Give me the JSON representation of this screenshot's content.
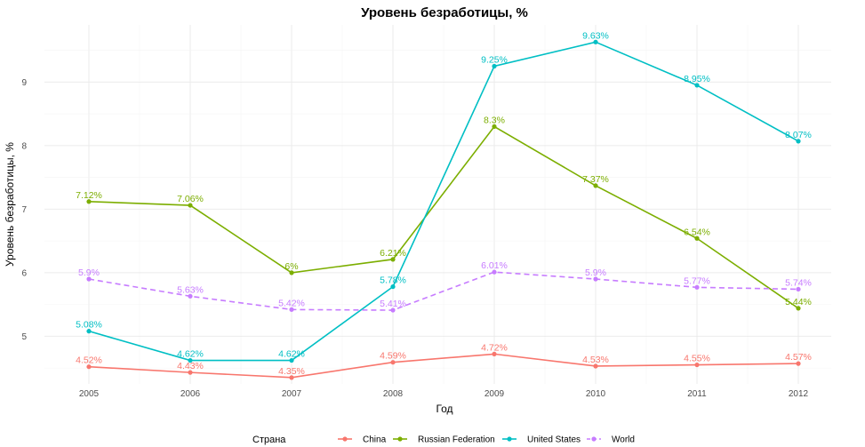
{
  "chart_data": {
    "type": "line",
    "title": "Уровень безработицы, %",
    "xlabel": "Год",
    "ylabel": "Уровень безработицы, %",
    "x": [
      2005,
      2006,
      2007,
      2008,
      2009,
      2010,
      2011,
      2012
    ],
    "ylim": [
      4.25,
      9.9
    ],
    "yticks": [
      5,
      6,
      7,
      8,
      9
    ],
    "grid": true,
    "legend": {
      "title": "Страна",
      "position": "bottom"
    },
    "series": [
      {
        "name": "China",
        "color": "#F8766D",
        "dashed": false,
        "values": [
          4.52,
          4.43,
          4.35,
          4.59,
          4.72,
          4.53,
          4.55,
          4.57
        ],
        "labels": [
          "4.52%",
          "4.43%",
          "4.35%",
          "4.59%",
          "4.72%",
          "4.53%",
          "4.55%",
          "4.57%"
        ]
      },
      {
        "name": "Russian Federation",
        "color": "#7CAE00",
        "dashed": false,
        "values": [
          7.12,
          7.06,
          6.0,
          6.21,
          8.3,
          7.37,
          6.54,
          5.44
        ],
        "labels": [
          "7.12%",
          "7.06%",
          "6%",
          "6.21%",
          "8.3%",
          "7.37%",
          "6.54%",
          "5.44%"
        ]
      },
      {
        "name": "United States",
        "color": "#00BFC4",
        "dashed": false,
        "values": [
          5.08,
          4.62,
          4.62,
          5.78,
          9.25,
          9.63,
          8.95,
          8.07
        ],
        "labels": [
          "5.08%",
          "4.62%",
          "4.62%",
          "5.78%",
          "9.25%",
          "9.63%",
          "8.95%",
          "8.07%"
        ]
      },
      {
        "name": "World",
        "color": "#C77CFF",
        "dashed": true,
        "values": [
          5.9,
          5.63,
          5.42,
          5.41,
          6.01,
          5.9,
          5.77,
          5.74
        ],
        "labels": [
          "5.9%",
          "5.63%",
          "5.42%",
          "5.41%",
          "6.01%",
          "5.9%",
          "5.77%",
          "5.74%"
        ]
      }
    ]
  }
}
